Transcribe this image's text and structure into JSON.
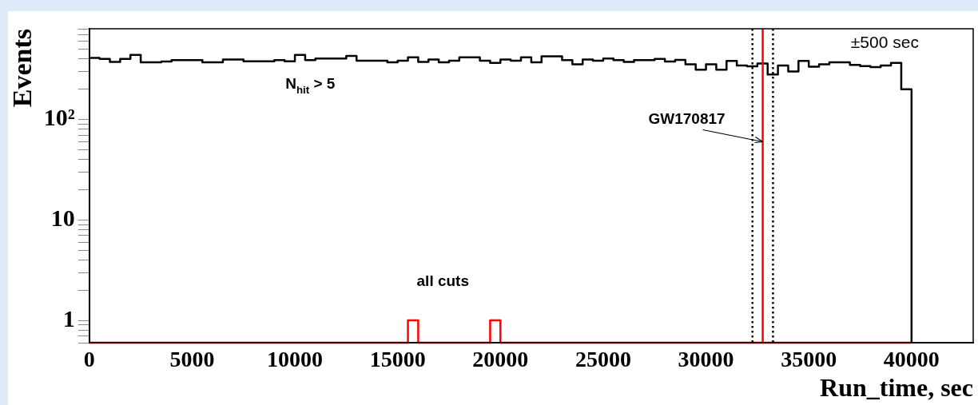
{
  "chart_data": {
    "type": "histogram",
    "xlabel": "Run_time, sec",
    "ylabel": "Events",
    "bins": [
      0,
      500,
      1000,
      1500,
      2000,
      2500,
      3000,
      3500,
      4000,
      4500,
      5000,
      5500,
      6000,
      6500,
      7000,
      7500,
      8000,
      8500,
      9000,
      9500,
      10000,
      10500,
      11000,
      11500,
      12000,
      12500,
      13000,
      13500,
      14000,
      14500,
      15000,
      15500,
      16000,
      16500,
      17000,
      17500,
      18000,
      18500,
      19000,
      19500,
      20000,
      20500,
      21000,
      21500,
      22000,
      22500,
      23000,
      23500,
      24000,
      24500,
      25000,
      25500,
      26000,
      26500,
      27000,
      27500,
      28000,
      28500,
      29000,
      29500,
      30000,
      30500,
      31000,
      31500,
      32000,
      32500,
      33000,
      33500,
      34000,
      34500,
      35000,
      35500,
      36000,
      36500,
      37000,
      37500,
      38000,
      38500,
      39000,
      39500,
      40000
    ],
    "series": [
      {
        "color": "#000000",
        "values": [
          410,
          400,
          375,
          400,
          440,
          370,
          370,
          378,
          390,
          390,
          390,
          370,
          370,
          395,
          395,
          380,
          380,
          380,
          390,
          380,
          440,
          390,
          405,
          405,
          405,
          430,
          385,
          385,
          385,
          370,
          385,
          415,
          375,
          395,
          370,
          385,
          415,
          415,
          385,
          365,
          395,
          385,
          415,
          370,
          425,
          425,
          390,
          355,
          395,
          385,
          405,
          390,
          375,
          390,
          390,
          400,
          378,
          392,
          355,
          313,
          355,
          313,
          383,
          345,
          338,
          360,
          281,
          345,
          300,
          383,
          335,
          355,
          370,
          370,
          350,
          340,
          332,
          345,
          365,
          200
        ]
      },
      {
        "color": "#ff0000",
        "values": [
          null,
          null,
          null,
          null,
          null,
          null,
          null,
          null,
          null,
          null,
          null,
          null,
          null,
          null,
          null,
          null,
          null,
          null,
          null,
          null,
          null,
          null,
          null,
          null,
          null,
          null,
          null,
          null,
          null,
          null,
          null,
          1,
          null,
          null,
          null,
          null,
          null,
          null,
          null,
          1,
          null,
          null,
          null,
          null,
          null,
          null,
          null,
          null,
          null,
          null,
          null,
          null,
          null,
          null,
          null,
          null,
          null,
          null,
          null,
          null,
          null,
          null,
          null,
          null,
          null,
          null,
          null,
          null,
          null,
          null,
          null,
          null,
          null,
          null,
          null,
          null,
          null,
          null,
          null,
          null
        ]
      }
    ],
    "log": "y",
    "xlim": [
      0,
      43000
    ],
    "xticks": [
      0,
      5000,
      10000,
      15000,
      20000,
      25000,
      30000,
      35000,
      40000
    ],
    "ylim": [
      0.6,
      800
    ],
    "yticks": [
      {
        "value": 0.6,
        "label": null
      },
      {
        "value": 0.7,
        "label": null
      },
      {
        "value": 0.8,
        "label": null
      },
      {
        "value": 0.9,
        "label": null
      },
      {
        "value": 1,
        "label": "1"
      },
      {
        "value": 2,
        "label": null
      },
      {
        "value": 3,
        "label": null
      },
      {
        "value": 4,
        "label": null
      },
      {
        "value": 5,
        "label": null
      },
      {
        "value": 6,
        "label": null
      },
      {
        "value": 7,
        "label": null
      },
      {
        "value": 8,
        "label": null
      },
      {
        "value": 9,
        "label": null
      },
      {
        "value": 10,
        "label": "10"
      },
      {
        "value": 20,
        "label": null
      },
      {
        "value": 30,
        "label": null
      },
      {
        "value": 40,
        "label": null
      },
      {
        "value": 50,
        "label": null
      },
      {
        "value": 60,
        "label": null
      },
      {
        "value": 70,
        "label": null
      },
      {
        "value": 80,
        "label": null
      },
      {
        "value": 90,
        "label": null
      },
      {
        "value": 100,
        "label": "10²"
      },
      {
        "value": 200,
        "label": null
      },
      {
        "value": 300,
        "label": null
      },
      {
        "value": 400,
        "label": null
      },
      {
        "value": 500,
        "label": null
      },
      {
        "value": 600,
        "label": null
      },
      {
        "value": 700,
        "label": null
      },
      {
        "value": 800,
        "label": null
      }
    ],
    "ref_lines": [
      {
        "axis": "x",
        "value": 32760,
        "color": "#ff0000",
        "line_style": "solid"
      },
      {
        "axis": "x",
        "value": 32260,
        "color": "#000000",
        "line_style": "dotted"
      },
      {
        "axis": "x",
        "value": 33260,
        "color": "#000000",
        "line_style": "dotted"
      }
    ],
    "annotations": [
      "N$_{hit}$ > 5",
      "all cuts",
      {
        "text": "GW170817",
        "x": 32760,
        "y": 60
      },
      "±500 sec"
    ],
    "grid": false
  }
}
